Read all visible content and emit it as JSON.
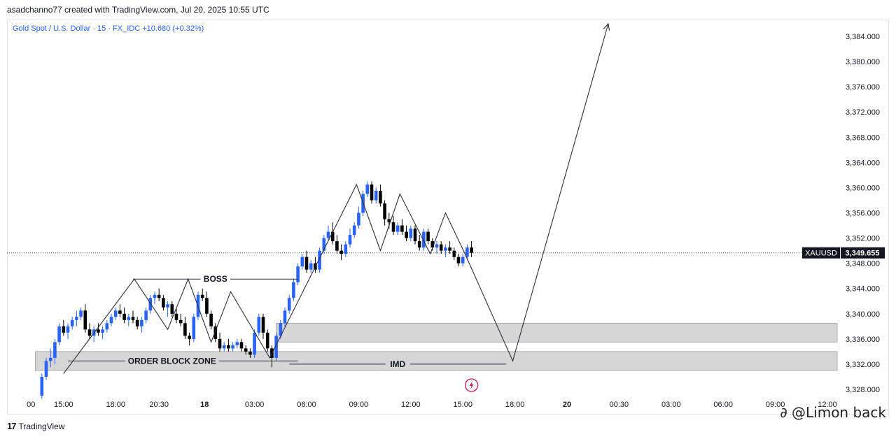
{
  "header": {
    "created_by": "asadchanno77 created with TradingView.com, Jul 20, 2025 10:55 UTC",
    "symbol_line": "Gold Spot / U.S. Dollar · 15 · FX_IDC  +10.680 (+0.32%)"
  },
  "footer": {
    "logo_text": "TradingView",
    "logo_mark": "17"
  },
  "watermark": {
    "text": "∂ @Limon back"
  },
  "colors": {
    "up": "#2962ff",
    "down": "#000000",
    "zone": "#d6d6d6",
    "line": "#2a2e39"
  },
  "chart_data": {
    "type": "candlestick",
    "ylim": [
      3326,
      3388
    ],
    "y_ticks": [
      3328,
      3332,
      3336,
      3340,
      3344,
      3348,
      3352,
      3356,
      3360,
      3364,
      3368,
      3372,
      3376,
      3380,
      3384
    ],
    "y_tick_labels": [
      "3,328.000",
      "3,332.000",
      "3,336.000",
      "3,340.000",
      "3,344.000",
      "3,348.000",
      "3,352.000",
      "3,356.000",
      "3,360.000",
      "3,364.000",
      "3,368.000",
      "3,372.000",
      "3,376.000",
      "3,380.000",
      "3,384.000"
    ],
    "x_ticks": [
      {
        "label": "00",
        "i": -3.5
      },
      {
        "label": "15:00",
        "i": 4
      },
      {
        "label": "18:00",
        "i": 16
      },
      {
        "label": "20:30",
        "i": 26
      },
      {
        "label": "18",
        "i": 36.5
      },
      {
        "label": "03:00",
        "i": 48
      },
      {
        "label": "06:00",
        "i": 60
      },
      {
        "label": "09:00",
        "i": 72
      },
      {
        "label": "12:00",
        "i": 84
      },
      {
        "label": "15:00",
        "i": 96
      },
      {
        "label": "18:00",
        "i": 108
      },
      {
        "label": "20",
        "i": 120
      },
      {
        "label": "00:30",
        "i": 132
      },
      {
        "label": "03:00",
        "i": 144
      },
      {
        "label": "06:00",
        "i": 156
      },
      {
        "label": "09:00",
        "i": 168
      },
      {
        "label": "12:00",
        "i": 180
      }
    ],
    "price_label": {
      "symbol": "XAUUSD",
      "value": "3,349.655",
      "price": 3349.655
    },
    "candles": [
      [
        3327.0,
        3330.5,
        3326.5,
        3330.0
      ],
      [
        3330.0,
        3333.0,
        3329.5,
        3332.5
      ],
      [
        3332.5,
        3334.5,
        3331.5,
        3333.0
      ],
      [
        3333.0,
        3336.0,
        3332.0,
        3335.5
      ],
      [
        3335.5,
        3338.5,
        3335.0,
        3338.0
      ],
      [
        3338.0,
        3339.0,
        3336.5,
        3337.0
      ],
      [
        3337.0,
        3338.5,
        3336.0,
        3338.0
      ],
      [
        3338.0,
        3339.5,
        3337.5,
        3339.0
      ],
      [
        3339.0,
        3340.5,
        3338.0,
        3339.5
      ],
      [
        3339.5,
        3341.0,
        3339.0,
        3340.5
      ],
      [
        3340.5,
        3341.5,
        3337.0,
        3337.5
      ],
      [
        3337.5,
        3338.5,
        3336.0,
        3336.5
      ],
      [
        3336.5,
        3338.0,
        3335.5,
        3337.5
      ],
      [
        3337.5,
        3338.5,
        3336.5,
        3337.0
      ],
      [
        3337.0,
        3338.0,
        3336.0,
        3337.5
      ],
      [
        3337.5,
        3339.0,
        3337.0,
        3338.5
      ],
      [
        3338.5,
        3340.0,
        3338.0,
        3339.5
      ],
      [
        3339.5,
        3341.0,
        3339.0,
        3340.5
      ],
      [
        3340.5,
        3341.5,
        3339.5,
        3340.0
      ],
      [
        3340.0,
        3341.0,
        3338.5,
        3339.0
      ],
      [
        3339.0,
        3340.0,
        3338.0,
        3339.5
      ],
      [
        3339.5,
        3340.5,
        3338.5,
        3339.0
      ],
      [
        3339.0,
        3339.5,
        3337.5,
        3338.0
      ],
      [
        3338.0,
        3339.5,
        3337.0,
        3339.0
      ],
      [
        3339.0,
        3341.0,
        3338.5,
        3340.5
      ],
      [
        3340.5,
        3343.0,
        3340.0,
        3342.5
      ],
      [
        3342.5,
        3343.5,
        3341.5,
        3343.0
      ],
      [
        3343.0,
        3344.0,
        3342.0,
        3342.5
      ],
      [
        3342.5,
        3343.0,
        3340.5,
        3341.0
      ],
      [
        3341.0,
        3342.0,
        3339.5,
        3341.5
      ],
      [
        3341.5,
        3342.0,
        3339.5,
        3340.0
      ],
      [
        3340.0,
        3341.0,
        3338.5,
        3339.0
      ],
      [
        3339.0,
        3340.0,
        3338.0,
        3338.5
      ],
      [
        3338.5,
        3339.5,
        3336.0,
        3336.5
      ],
      [
        3336.5,
        3337.0,
        3335.0,
        3336.0
      ],
      [
        3336.0,
        3340.0,
        3335.5,
        3339.5
      ],
      [
        3339.5,
        3343.5,
        3339.0,
        3343.0
      ],
      [
        3343.0,
        3344.0,
        3342.0,
        3342.5
      ],
      [
        3342.5,
        3343.5,
        3339.5,
        3340.0
      ],
      [
        3340.0,
        3340.5,
        3337.5,
        3338.0
      ],
      [
        3338.0,
        3338.5,
        3335.5,
        3336.0
      ],
      [
        3336.0,
        3337.0,
        3334.0,
        3334.5
      ],
      [
        3334.5,
        3335.5,
        3334.0,
        3335.0
      ],
      [
        3335.0,
        3336.0,
        3334.0,
        3334.5
      ],
      [
        3334.5,
        3335.5,
        3334.0,
        3335.0
      ],
      [
        3335.0,
        3336.0,
        3334.5,
        3335.5
      ],
      [
        3335.5,
        3336.0,
        3334.0,
        3334.5
      ],
      [
        3334.5,
        3335.0,
        3333.5,
        3334.0
      ],
      [
        3334.0,
        3334.5,
        3333.0,
        3333.5
      ],
      [
        3333.5,
        3337.5,
        3333.0,
        3337.0
      ],
      [
        3337.0,
        3340.0,
        3336.5,
        3339.5
      ],
      [
        3339.5,
        3340.0,
        3336.0,
        3337.0
      ],
      [
        3337.0,
        3337.5,
        3334.0,
        3334.5
      ],
      [
        3334.5,
        3335.0,
        3331.5,
        3333.0
      ],
      [
        3333.0,
        3337.0,
        3332.5,
        3336.5
      ],
      [
        3336.5,
        3339.0,
        3336.0,
        3338.5
      ],
      [
        3338.5,
        3341.0,
        3338.0,
        3340.5
      ],
      [
        3340.5,
        3343.0,
        3340.0,
        3342.5
      ],
      [
        3342.5,
        3345.5,
        3342.0,
        3345.0
      ],
      [
        3345.0,
        3348.0,
        3344.5,
        3347.5
      ],
      [
        3347.5,
        3349.5,
        3347.0,
        3349.0
      ],
      [
        3349.0,
        3350.0,
        3346.5,
        3347.0
      ],
      [
        3347.0,
        3348.5,
        3346.5,
        3348.0
      ],
      [
        3348.0,
        3349.0,
        3346.5,
        3347.0
      ],
      [
        3347.0,
        3350.5,
        3346.5,
        3350.0
      ],
      [
        3350.0,
        3352.5,
        3349.5,
        3352.0
      ],
      [
        3352.0,
        3354.0,
        3351.5,
        3353.0
      ],
      [
        3353.0,
        3354.5,
        3351.0,
        3351.5
      ],
      [
        3351.5,
        3352.5,
        3349.5,
        3350.0
      ],
      [
        3350.0,
        3351.0,
        3348.5,
        3349.5
      ],
      [
        3349.5,
        3351.5,
        3349.0,
        3351.0
      ],
      [
        3351.0,
        3353.5,
        3350.5,
        3352.5
      ],
      [
        3352.5,
        3354.5,
        3352.0,
        3354.0
      ],
      [
        3354.0,
        3357.0,
        3353.5,
        3356.0
      ],
      [
        3356.0,
        3359.5,
        3355.5,
        3359.0
      ],
      [
        3359.0,
        3361.0,
        3358.5,
        3360.5
      ],
      [
        3360.5,
        3361.0,
        3357.5,
        3358.0
      ],
      [
        3358.0,
        3360.0,
        3357.5,
        3359.5
      ],
      [
        3359.5,
        3360.5,
        3357.0,
        3357.5
      ],
      [
        3357.5,
        3358.0,
        3354.0,
        3355.0
      ],
      [
        3355.0,
        3356.0,
        3353.5,
        3354.5
      ],
      [
        3354.5,
        3355.5,
        3352.5,
        3353.0
      ],
      [
        3353.0,
        3354.5,
        3352.5,
        3354.0
      ],
      [
        3354.0,
        3355.0,
        3352.5,
        3353.0
      ],
      [
        3353.0,
        3354.0,
        3351.5,
        3352.0
      ],
      [
        3352.0,
        3354.0,
        3351.5,
        3353.5
      ],
      [
        3353.5,
        3354.0,
        3351.0,
        3351.5
      ],
      [
        3351.5,
        3352.5,
        3350.0,
        3350.5
      ],
      [
        3350.5,
        3353.5,
        3350.0,
        3353.0
      ],
      [
        3353.0,
        3353.5,
        3351.0,
        3351.5
      ],
      [
        3351.5,
        3352.0,
        3350.0,
        3350.5
      ],
      [
        3350.5,
        3351.5,
        3349.5,
        3351.0
      ],
      [
        3351.0,
        3351.5,
        3349.5,
        3350.0
      ],
      [
        3350.0,
        3351.0,
        3349.0,
        3350.5
      ],
      [
        3350.5,
        3351.5,
        3349.5,
        3350.0
      ],
      [
        3350.0,
        3350.5,
        3348.5,
        3349.0
      ],
      [
        3349.0,
        3349.5,
        3347.5,
        3348.0
      ],
      [
        3348.0,
        3349.5,
        3347.5,
        3349.0
      ],
      [
        3349.0,
        3351.0,
        3348.5,
        3350.5
      ],
      [
        3350.5,
        3351.5,
        3349.0,
        3349.655
      ]
    ],
    "candle_i_start": -1,
    "zones": [
      {
        "i0": -2.5,
        "i1": 200,
        "y0": 3331.0,
        "y1": 3334.0
      },
      {
        "i0": 53,
        "i1": 200,
        "y0": 3335.5,
        "y1": 3338.5
      }
    ],
    "hlines": [
      {
        "i0": 20,
        "i1": 58,
        "y": 3345.5,
        "label": "BOSS",
        "label_i": 39
      },
      {
        "i0": 5,
        "i1": 58,
        "y": 3332.5,
        "label": "ORDER BLOCK ZONE",
        "label_i": 29
      },
      {
        "i0": 56,
        "i1": 106,
        "y": 3332.0,
        "label": "IMD",
        "label_i": 81
      }
    ],
    "zigzag": [
      [
        4,
        3330.5
      ],
      [
        20.3,
        3345.5
      ],
      [
        28.0,
        3337.5
      ],
      [
        32.7,
        3345.5
      ],
      [
        38.0,
        3335.5
      ],
      [
        42.5,
        3343.5
      ],
      [
        51.5,
        3333.0
      ],
      [
        71.5,
        3360.5
      ],
      [
        77.0,
        3350.0
      ],
      [
        81.5,
        3359.0
      ],
      [
        88.5,
        3349.5
      ],
      [
        92.0,
        3356.0
      ],
      [
        96.5,
        3349.5
      ],
      [
        107.5,
        3332.5
      ],
      [
        129.5,
        3386.0
      ]
    ],
    "icon": {
      "i": 98,
      "y": 3328.0,
      "name": "lightning-icon"
    }
  }
}
